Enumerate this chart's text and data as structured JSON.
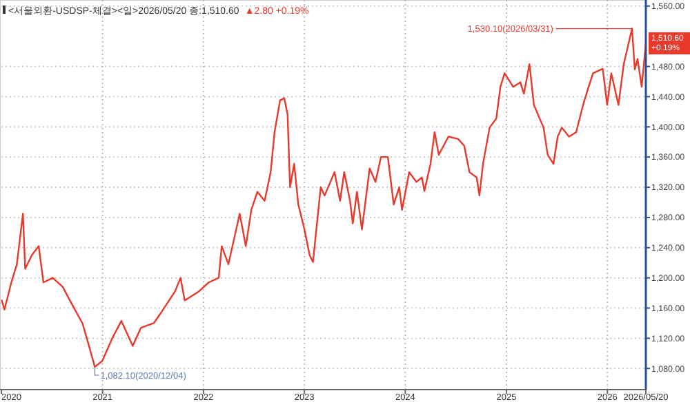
{
  "chart_data": {
    "type": "line",
    "title": "<서울외환-USDSP-체결><일>2026/05/20 종:1,510.60",
    "subtitle": "▲2.80 +0.19%",
    "x": [
      "2020-01-02",
      "2020-01-12",
      "2020-02-06",
      "2020-02-26",
      "2020-03-19",
      "2020-03-27",
      "2020-04-20",
      "2020-05-15",
      "2020-06-01",
      "2020-07-05",
      "2020-08-10",
      "2020-09-05",
      "2020-10-20",
      "2020-11-05",
      "2020-12-04",
      "2020-12-31",
      "2021-02-05",
      "2021-03-10",
      "2021-04-20",
      "2021-05-20",
      "2021-07-05",
      "2021-07-28",
      "2021-09-20",
      "2021-10-10",
      "2021-10-25",
      "2021-12-15",
      "2022-01-20",
      "2022-02-25",
      "2022-03-08",
      "2022-04-01",
      "2022-05-12",
      "2022-06-03",
      "2022-06-23",
      "2022-07-15",
      "2022-08-10",
      "2022-09-01",
      "2022-09-15",
      "2022-10-05",
      "2022-10-20",
      "2022-11-01",
      "2022-11-10",
      "2022-11-25",
      "2022-12-10",
      "2022-12-31",
      "2023-01-20",
      "2023-02-01",
      "2023-03-01",
      "2023-03-15",
      "2023-04-20",
      "2023-05-10",
      "2023-05-25",
      "2023-06-15",
      "2023-06-25",
      "2023-07-10",
      "2023-07-28",
      "2023-08-25",
      "2023-09-15",
      "2023-10-05",
      "2023-10-30",
      "2023-11-20",
      "2023-12-10",
      "2023-12-20",
      "2024-01-15",
      "2024-02-10",
      "2024-03-01",
      "2024-03-10",
      "2024-04-01",
      "2024-04-16",
      "2024-05-01",
      "2024-06-05",
      "2024-07-10",
      "2024-08-01",
      "2024-08-20",
      "2024-09-15",
      "2024-09-25",
      "2024-10-08",
      "2024-11-01",
      "2024-11-25",
      "2024-12-10",
      "2024-12-25",
      "2025-01-25",
      "2025-02-20",
      "2025-03-05",
      "2025-03-25",
      "2025-04-10",
      "2025-05-15",
      "2025-05-30",
      "2025-06-20",
      "2025-07-05",
      "2025-07-20",
      "2025-08-15",
      "2025-09-10",
      "2025-10-05",
      "2025-10-25",
      "2025-11-10",
      "2025-12-15",
      "2025-12-31",
      "2026-01-15",
      "2026-02-10",
      "2026-03-01",
      "2026-03-31",
      "2026-04-10",
      "2026-04-20",
      "2026-05-05",
      "2026-05-20"
    ],
    "series": [
      {
        "color": "#e8392b",
        "values": [
          1171,
          1158,
          1194,
          1218,
          1285,
          1212,
          1230,
          1242,
          1194,
          1200,
          1188,
          1170,
          1140,
          1120,
          1082.1,
          1090,
          1120,
          1143,
          1110,
          1134,
          1140,
          1152,
          1182,
          1200,
          1170,
          1182,
          1194,
          1200,
          1242,
          1218,
          1285,
          1242,
          1290,
          1314,
          1302,
          1340,
          1393,
          1435,
          1438,
          1417,
          1320,
          1351,
          1297,
          1266,
          1230,
          1221,
          1320,
          1309,
          1340,
          1302,
          1340,
          1302,
          1272,
          1314,
          1264,
          1345,
          1327,
          1360,
          1360,
          1297,
          1320,
          1290,
          1340,
          1327,
          1333,
          1315,
          1351,
          1393,
          1363,
          1387,
          1384,
          1375,
          1340,
          1333,
          1309,
          1351,
          1399,
          1411,
          1453,
          1471,
          1453,
          1459,
          1444,
          1483,
          1429,
          1399,
          1363,
          1351,
          1387,
          1399,
          1387,
          1393,
          1429,
          1453,
          1471,
          1477,
          1429,
          1471,
          1429,
          1483,
          1530.1,
          1476,
          1490,
          1453,
          1510.6
        ]
      }
    ],
    "xlim": [
      "2020-01-01",
      "2026-05-20"
    ],
    "xticks": [
      {
        "value": "2020-01-01",
        "label": "2020"
      },
      {
        "value": "2021-01-01",
        "label": "2021"
      },
      {
        "value": "2022-01-01",
        "label": "2022"
      },
      {
        "value": "2023-01-01",
        "label": "2023"
      },
      {
        "value": "2024-01-01",
        "label": "2024"
      },
      {
        "value": "2025-01-01",
        "label": "2025"
      },
      {
        "value": "2026-01-01",
        "label": "2026"
      },
      {
        "value": "2026-05-20",
        "label": "2026/05/20"
      }
    ],
    "ylim": [
      1052,
      1568
    ],
    "yticks": [
      {
        "value": 1080,
        "label": "1,080.00"
      },
      {
        "value": 1120,
        "label": "1,120.00"
      },
      {
        "value": 1160,
        "label": "1,160.00"
      },
      {
        "value": 1200,
        "label": "1,200.00"
      },
      {
        "value": 1240,
        "label": "1,240.00"
      },
      {
        "value": 1280,
        "label": "1,280.00"
      },
      {
        "value": 1320,
        "label": "1,320.00"
      },
      {
        "value": 1360,
        "label": "1,360.00"
      },
      {
        "value": 1400,
        "label": "1,400.00"
      },
      {
        "value": 1440,
        "label": "1,440.00"
      },
      {
        "value": 1480,
        "label": "1,480.00"
      },
      {
        "value": 1560,
        "label": "1,560.00"
      }
    ],
    "grid": true,
    "line_style": "solid",
    "annotations": [
      {
        "text": "1,530.10(2026/03/31)",
        "x": "2026-03-31",
        "y": 1530.1
      },
      {
        "text": "1,082.10(2020/12/04)",
        "x": "2020-12-04",
        "y": 1082.1
      },
      {
        "text": "1,510.60 +0.19%",
        "x": "2026-05-20",
        "y": 1510.6
      }
    ]
  }
}
